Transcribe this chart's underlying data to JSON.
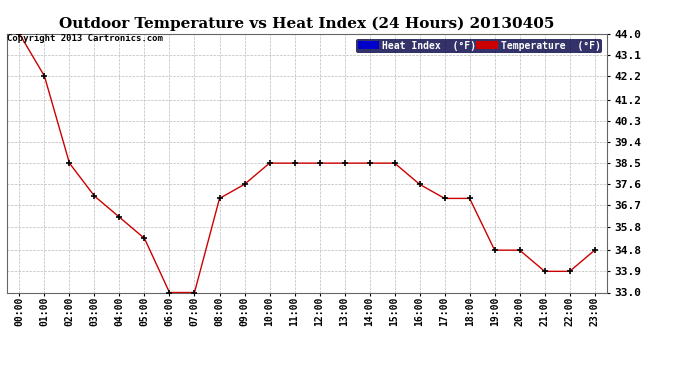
{
  "title": "Outdoor Temperature vs Heat Index (24 Hours) 20130405",
  "copyright": "Copyright 2013 Cartronics.com",
  "legend_heat_index": "Heat Index  (°F)",
  "legend_temperature": "Temperature  (°F)",
  "x_labels": [
    "00:00",
    "01:00",
    "02:00",
    "03:00",
    "04:00",
    "05:00",
    "06:00",
    "07:00",
    "08:00",
    "09:00",
    "10:00",
    "11:00",
    "12:00",
    "13:00",
    "14:00",
    "15:00",
    "16:00",
    "17:00",
    "18:00",
    "19:00",
    "20:00",
    "21:00",
    "22:00",
    "23:00"
  ],
  "temperature": [
    44.0,
    42.2,
    38.5,
    37.1,
    36.2,
    35.3,
    33.0,
    33.0,
    37.0,
    37.6,
    38.5,
    38.5,
    38.5,
    38.5,
    38.5,
    38.5,
    37.6,
    37.0,
    37.0,
    34.8,
    34.8,
    33.9,
    33.9,
    34.8
  ],
  "heat_index": [
    44.0,
    42.2,
    38.5,
    37.1,
    36.2,
    35.3,
    33.0,
    33.0,
    37.0,
    37.6,
    38.5,
    38.5,
    38.5,
    38.5,
    38.5,
    38.5,
    37.6,
    37.0,
    37.0,
    34.8,
    34.8,
    33.9,
    33.9,
    34.8
  ],
  "ylim_min": 33.0,
  "ylim_max": 44.0,
  "yticks": [
    33.0,
    33.9,
    34.8,
    35.8,
    36.7,
    37.6,
    38.5,
    39.4,
    40.3,
    41.2,
    42.2,
    43.1,
    44.0
  ],
  "line_color": "#cc0000",
  "marker_color": "#000000",
  "bg_color": "#ffffff",
  "grid_color": "#bbbbbb",
  "title_fontsize": 11,
  "legend_heat_bg": "#0000cc",
  "legend_temp_bg": "#cc0000",
  "legend_text_color": "#ffffff",
  "legend_frame_bg": "#000044"
}
